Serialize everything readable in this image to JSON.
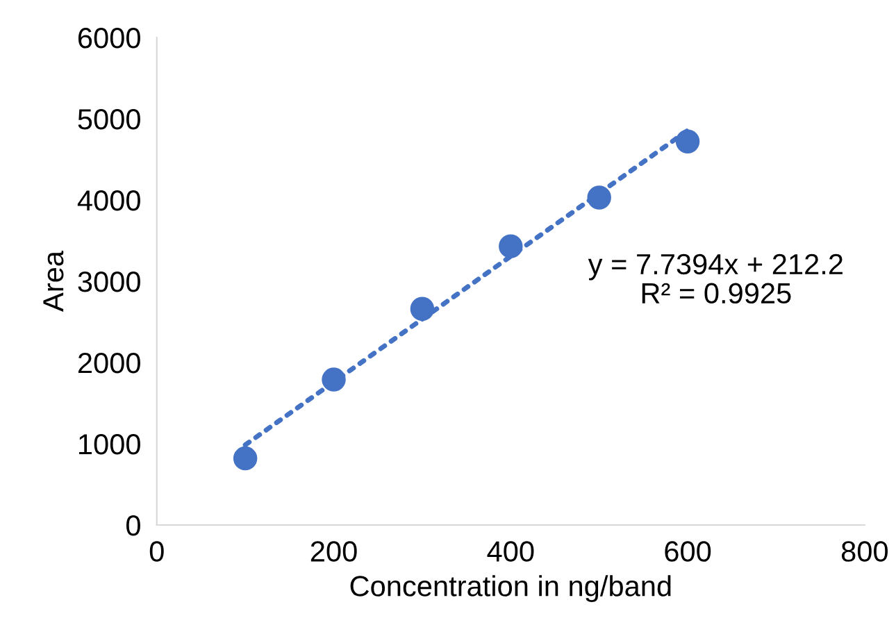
{
  "chart_data": {
    "type": "scatter",
    "xlabel": "Concentration in ng/band",
    "ylabel": "Area",
    "x": [
      100,
      200,
      300,
      400,
      500,
      600
    ],
    "series": [
      {
        "color": "#4472c4",
        "values": [
          820,
          1790,
          2660,
          3430,
          4030,
          4720
        ],
        "marker": "circle"
      },
      {
        "type": "line",
        "color": "#4472c4",
        "x": [
          100,
          600
        ],
        "values": [
          986,
          4856
        ],
        "line_style": "dotted",
        "marker": "none"
      }
    ],
    "annotations": [
      "y = 7.7394x + 212.2",
      "R² = 0.9925"
    ],
    "xlim": [
      0,
      800
    ],
    "xticks": [
      0,
      200,
      400,
      600,
      800
    ],
    "ylim": [
      0,
      6000
    ],
    "yticks": [
      0,
      1000,
      2000,
      3000,
      4000,
      5000,
      6000
    ],
    "grid": false,
    "legend": false
  }
}
